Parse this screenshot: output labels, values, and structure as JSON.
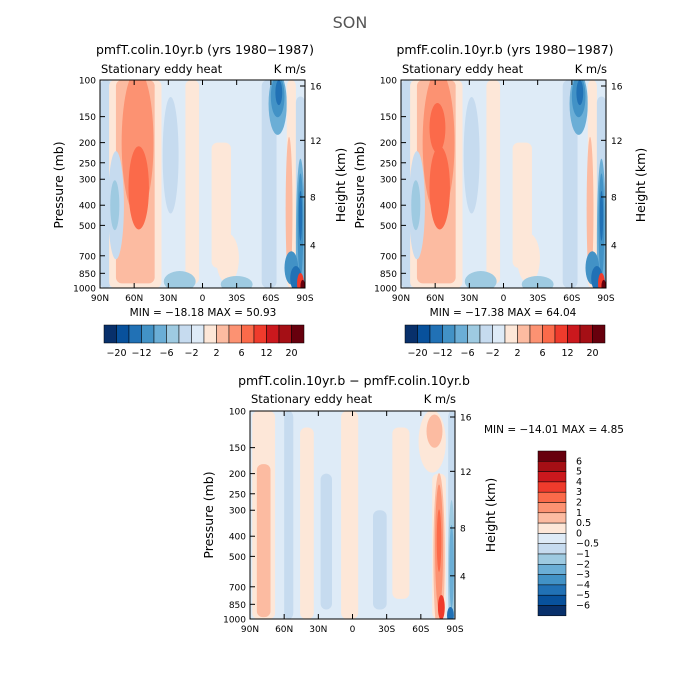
{
  "figure_title": "SON",
  "colors": {
    "neg6": "#08306b",
    "neg5": "#08519c",
    "neg4": "#2171b5",
    "neg3": "#4292c6",
    "neg2": "#6baed6",
    "neg1": "#9ecae1",
    "neg05": "#c6dbef",
    "neg0": "#deebf7",
    "pos0": "#fde7d8",
    "pos05": "#fcbba1",
    "pos1": "#fc9272",
    "pos2": "#fb6a4a",
    "pos3": "#ef3b2c",
    "pos4": "#cb181d",
    "pos5": "#a50f15",
    "pos6": "#67000d"
  },
  "chart_data": [
    {
      "type": "heatmap",
      "title": "pmfT.colin.10yr.b (yrs 1980−1987)",
      "subtitle_left": "Stationary eddy heat",
      "subtitle_right": "K m/s",
      "ylabel": "Pressure (mb)",
      "ylabel_right": "Height (km)",
      "x_ticks": [
        "90N",
        "60N",
        "30N",
        "0",
        "30S",
        "60S",
        "90S"
      ],
      "y_ticks": [
        "100",
        "150",
        "200",
        "250",
        "300",
        "400",
        "500",
        "700",
        "850",
        "1000"
      ],
      "y_ticks_right": [
        "16",
        "12",
        "8",
        "4"
      ],
      "xlim": [
        90,
        -90
      ],
      "ylim": [
        1000,
        100
      ],
      "stats": "MIN = −18.18   MAX = 50.93",
      "min": -18.18,
      "max": 50.93,
      "colorbar_labels": [
        "−20",
        "−12",
        "−6",
        "−2",
        "2",
        "6",
        "12",
        "20"
      ]
    },
    {
      "type": "heatmap",
      "title": "pmfF.colin.10yr.b (yrs 1980−1987)",
      "subtitle_left": "Stationary eddy heat",
      "subtitle_right": "K m/s",
      "ylabel": "Pressure (mb)",
      "ylabel_right": "Height (km)",
      "x_ticks": [
        "90N",
        "60N",
        "30N",
        "0",
        "30S",
        "60S",
        "90S"
      ],
      "y_ticks": [
        "100",
        "150",
        "200",
        "250",
        "300",
        "400",
        "500",
        "700",
        "850",
        "1000"
      ],
      "y_ticks_right": [
        "16",
        "12",
        "8",
        "4"
      ],
      "xlim": [
        90,
        -90
      ],
      "ylim": [
        1000,
        100
      ],
      "stats": "MIN = −17.38   MAX = 64.04",
      "min": -17.38,
      "max": 64.04,
      "colorbar_labels": [
        "−20",
        "−12",
        "−6",
        "−2",
        "2",
        "6",
        "12",
        "20"
      ]
    },
    {
      "type": "heatmap",
      "title": "pmfT.colin.10yr.b − pmfF.colin.10yr.b",
      "subtitle_left": "Stationary eddy heat",
      "subtitle_right": "K m/s",
      "ylabel": "Pressure (mb)",
      "ylabel_right": "Height (km)",
      "x_ticks": [
        "90N",
        "60N",
        "30N",
        "0",
        "30S",
        "60S",
        "90S"
      ],
      "y_ticks": [
        "100",
        "150",
        "200",
        "250",
        "300",
        "400",
        "500",
        "700",
        "850",
        "1000"
      ],
      "y_ticks_right": [
        "16",
        "12",
        "8",
        "4"
      ],
      "xlim": [
        90,
        -90
      ],
      "ylim": [
        1000,
        100
      ],
      "stats": "MIN = −14.01   MAX =   4.85",
      "min": -14.01,
      "max": 4.85,
      "colorbar_labels": [
        "6",
        "5",
        "4",
        "3",
        "2",
        "1",
        "0.5",
        "0",
        "−0.5",
        "−1",
        "−2",
        "−3",
        "−4",
        "−5",
        "−6"
      ]
    }
  ]
}
